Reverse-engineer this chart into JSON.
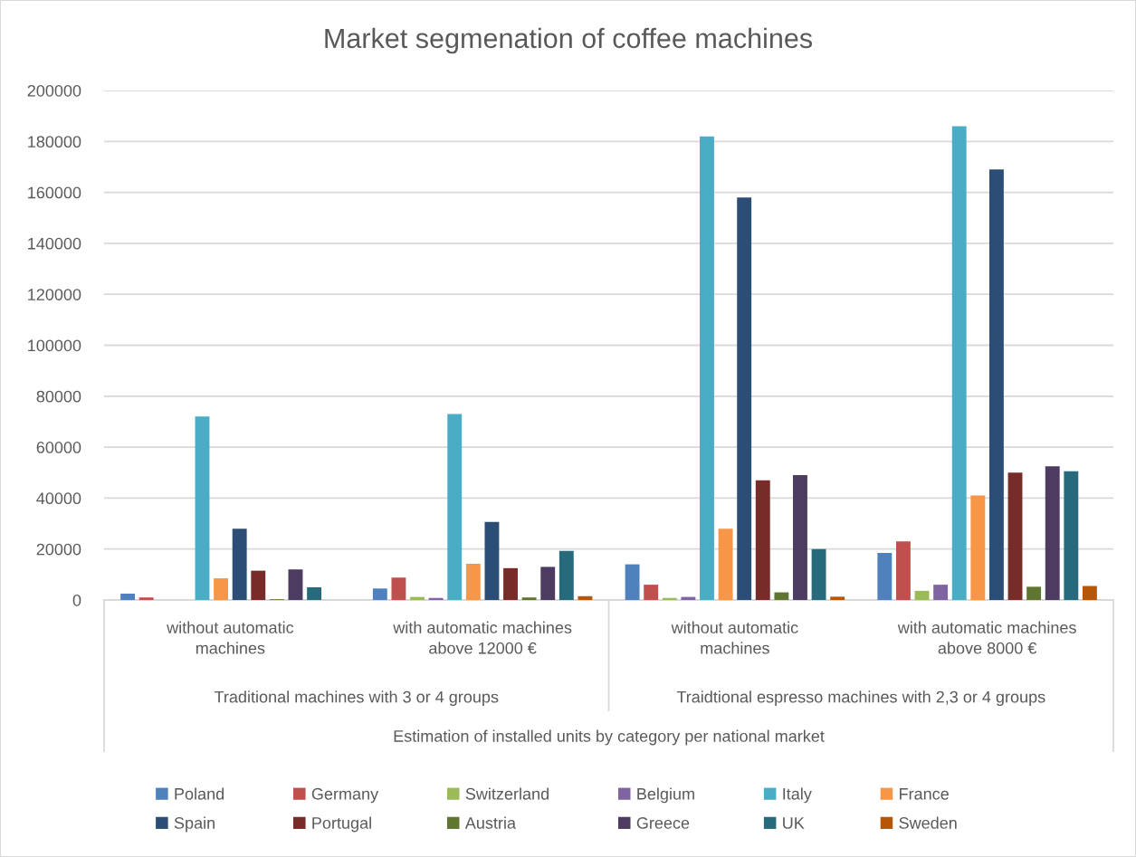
{
  "chart_data": {
    "type": "bar",
    "title": "Market segmenation of coffee machines",
    "xlabel": "Estimation of installed units by category per national market",
    "categories": [
      "without automatic\nmachines",
      "with automatic machines\nabove 12000 €",
      "without automatic\nmachines",
      "with automatic machines\nabove 8000 €"
    ],
    "annotations": [
      "Traditional machines with 3 or 4 groups",
      "Traidtional espresso machines with 2,3 or 4 groups"
    ],
    "series": [
      {
        "name": "Poland",
        "color": "#4f81bd",
        "values": [
          2500,
          4500,
          14000,
          18500
        ]
      },
      {
        "name": "Germany",
        "color": "#c0504d",
        "values": [
          1000,
          8800,
          6000,
          23000
        ]
      },
      {
        "name": "Switzerland",
        "color": "#9bbb59",
        "values": [
          0,
          1200,
          800,
          3600
        ]
      },
      {
        "name": "Belgium",
        "color": "#8064a2",
        "values": [
          0,
          800,
          1200,
          6000
        ]
      },
      {
        "name": "Italy",
        "color": "#4bacc6",
        "values": [
          72000,
          73000,
          182000,
          186000
        ]
      },
      {
        "name": "France",
        "color": "#f79646",
        "values": [
          8500,
          14200,
          28000,
          41000
        ]
      },
      {
        "name": "Spain",
        "color": "#2c4d75",
        "values": [
          28000,
          30600,
          158000,
          169000
        ]
      },
      {
        "name": "Portugal",
        "color": "#772c2a",
        "values": [
          11500,
          12500,
          47000,
          50000
        ]
      },
      {
        "name": "Austria",
        "color": "#5f7530",
        "values": [
          300,
          1000,
          3000,
          5200
        ]
      },
      {
        "name": "Greece",
        "color": "#4d3b62",
        "values": [
          12000,
          13000,
          49000,
          52500
        ]
      },
      {
        "name": "UK",
        "color": "#276a7c",
        "values": [
          5000,
          19300,
          20000,
          50500
        ]
      },
      {
        "name": "Sweden",
        "color": "#b65708",
        "values": [
          0,
          1500,
          1300,
          5500
        ]
      }
    ],
    "ylim": [
      0,
      200000
    ],
    "yticks": [
      0,
      20000,
      40000,
      60000,
      80000,
      100000,
      120000,
      140000,
      160000,
      180000,
      200000
    ],
    "grid": "y",
    "legend": "bottom"
  }
}
